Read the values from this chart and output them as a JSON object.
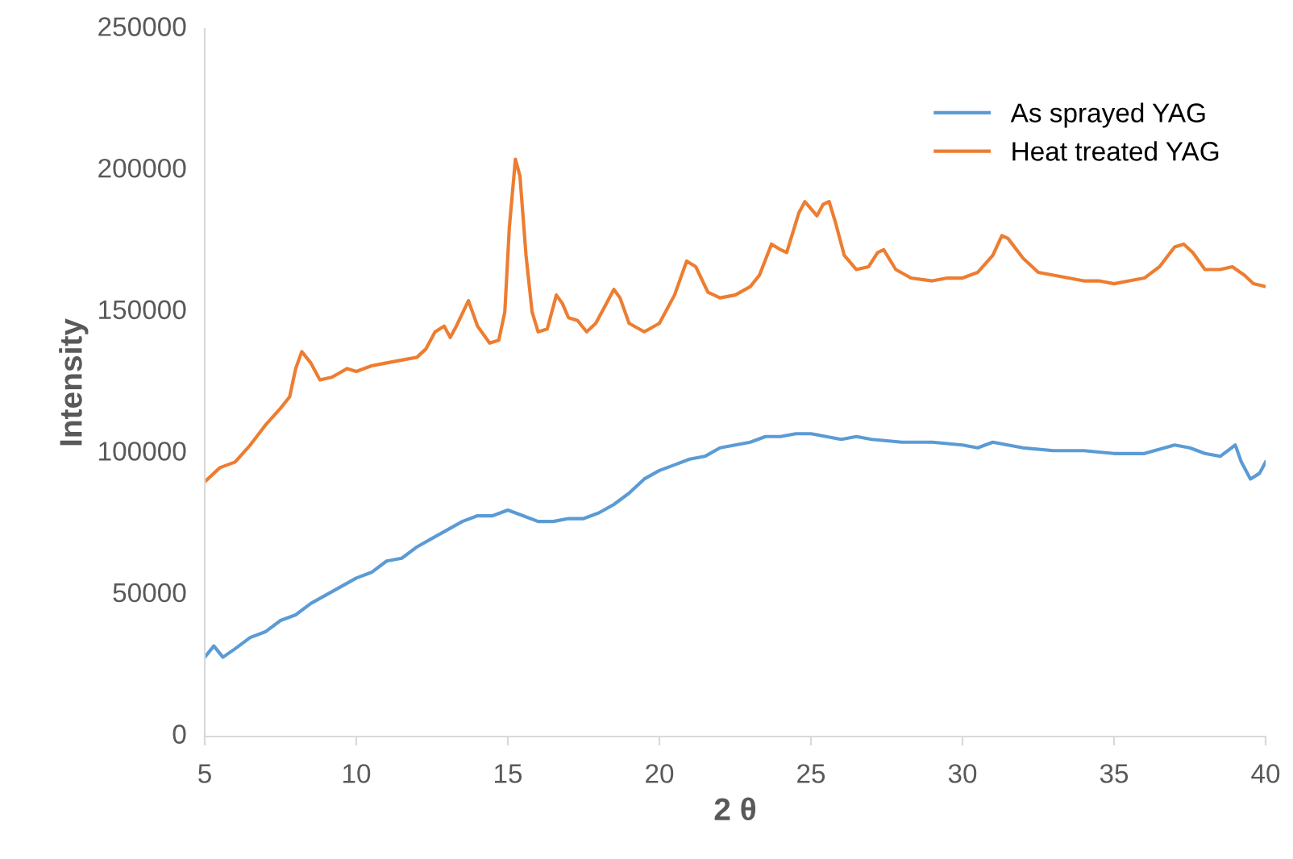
{
  "chart_data": {
    "type": "line",
    "xlabel": "2 θ",
    "ylabel": "Intensity",
    "xlim": [
      5,
      40
    ],
    "xticks": [
      5,
      10,
      15,
      20,
      25,
      30,
      35,
      40
    ],
    "ylim": [
      0,
      250000
    ],
    "yticks": [
      0,
      50000,
      100000,
      150000,
      200000,
      250000
    ],
    "grid": false,
    "legend": "top right",
    "marker": "none",
    "line_style": "solid",
    "series": [
      {
        "name": "As sprayed YAG",
        "color": "#5b9bd5",
        "x": [
          5,
          5.3,
          5.6,
          6,
          6.5,
          7,
          7.5,
          8,
          8.5,
          9,
          9.5,
          10,
          10.5,
          11,
          11.5,
          12,
          12.5,
          13,
          13.5,
          14,
          14.5,
          15,
          15.5,
          16,
          16.5,
          17,
          17.5,
          18,
          18.5,
          19,
          19.5,
          20,
          20.5,
          21,
          21.5,
          22,
          22.5,
          23,
          23.5,
          24,
          24.5,
          25,
          25.5,
          26,
          26.5,
          27,
          28,
          29,
          30,
          30.5,
          31,
          31.5,
          32,
          33,
          34,
          35,
          36,
          37,
          37.5,
          38,
          38.5,
          39,
          39.2,
          39.5,
          39.8,
          40
        ],
        "values": [
          28000,
          32000,
          28000,
          31000,
          35000,
          37000,
          41000,
          43000,
          47000,
          50000,
          53000,
          56000,
          58000,
          62000,
          63000,
          67000,
          70000,
          73000,
          76000,
          78000,
          78000,
          80000,
          78000,
          76000,
          76000,
          77000,
          77000,
          79000,
          82000,
          86000,
          91000,
          94000,
          96000,
          98000,
          99000,
          102000,
          103000,
          104000,
          106000,
          106000,
          107000,
          107000,
          106000,
          105000,
          106000,
          105000,
          104000,
          104000,
          103000,
          102000,
          104000,
          103000,
          102000,
          101000,
          101000,
          100000,
          100000,
          103000,
          102000,
          100000,
          99000,
          103000,
          97000,
          91000,
          93000,
          97000
        ]
      },
      {
        "name": "Heat treated YAG",
        "color": "#ed7d31",
        "x": [
          5,
          5.5,
          6,
          6.5,
          7,
          7.5,
          7.8,
          8,
          8.2,
          8.5,
          8.8,
          9.2,
          9.7,
          10,
          10.5,
          11,
          11.5,
          12,
          12.3,
          12.6,
          12.9,
          13.1,
          13.3,
          13.7,
          14,
          14.4,
          14.7,
          14.9,
          15.05,
          15.25,
          15.4,
          15.6,
          15.8,
          16,
          16.3,
          16.6,
          16.8,
          17,
          17.3,
          17.6,
          17.9,
          18.2,
          18.5,
          18.7,
          19,
          19.5,
          20,
          20.5,
          20.9,
          21.2,
          21.6,
          22,
          22.5,
          23,
          23.3,
          23.7,
          24,
          24.2,
          24.6,
          24.8,
          25.2,
          25.4,
          25.6,
          25.8,
          26.1,
          26.5,
          26.9,
          27.2,
          27.4,
          27.8,
          28.3,
          29,
          29.5,
          30,
          30.5,
          31,
          31.3,
          31.5,
          32,
          32.5,
          33,
          33.5,
          34,
          34.5,
          35,
          35.5,
          36,
          36.5,
          37,
          37.3,
          37.6,
          38,
          38.5,
          38.9,
          39.3,
          39.6,
          40
        ],
        "values": [
          90000,
          95000,
          97000,
          103000,
          110000,
          116000,
          120000,
          130000,
          136000,
          132000,
          126000,
          127000,
          130000,
          129000,
          131000,
          132000,
          133000,
          134000,
          137000,
          143000,
          145000,
          141000,
          145000,
          154000,
          145000,
          139000,
          140000,
          150000,
          180000,
          204000,
          198000,
          170000,
          150000,
          143000,
          144000,
          156000,
          153000,
          148000,
          147000,
          143000,
          146000,
          152000,
          158000,
          155000,
          146000,
          143000,
          146000,
          156000,
          168000,
          166000,
          157000,
          155000,
          156000,
          159000,
          163000,
          174000,
          172000,
          171000,
          185000,
          189000,
          184000,
          188000,
          189000,
          182000,
          170000,
          165000,
          166000,
          171000,
          172000,
          165000,
          162000,
          161000,
          162000,
          162000,
          164000,
          170000,
          177000,
          176000,
          169000,
          164000,
          163000,
          162000,
          161000,
          161000,
          160000,
          161000,
          162000,
          166000,
          173000,
          174000,
          171000,
          165000,
          165000,
          166000,
          163000,
          160000,
          159000
        ]
      }
    ]
  }
}
